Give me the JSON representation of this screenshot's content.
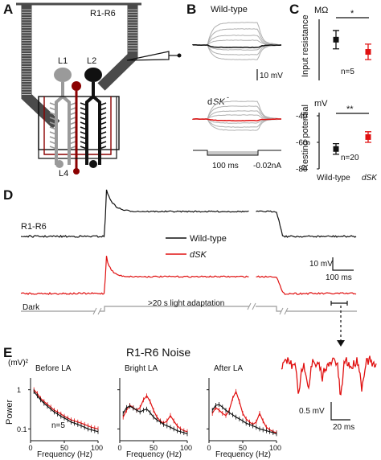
{
  "panel_labels": {
    "a": "A",
    "b": "B",
    "c": "C",
    "d": "D",
    "e": "E"
  },
  "panel_a": {
    "photoreceptor_group": "R1-R6",
    "cell_l1": "L1",
    "cell_l2": "L2",
    "cell_l4": "L4"
  },
  "panel_b": {
    "wild_type": "Wild-type",
    "mutant_prefix": "d",
    "mutant_gene": "SK",
    "mutant_superscript": "-",
    "voltage_scale": "10 mV",
    "time_scale": "100 ms",
    "current": "-0.02nA"
  },
  "panel_c": {
    "colors": {
      "wild_type": "#111111",
      "mutant": "#e01010"
    },
    "top": {
      "unit": "MΩ",
      "ylabel": "Input resistance",
      "n_label": "n=5",
      "significance": "*"
    },
    "bottom": {
      "unit": "mV",
      "ylabel": "Resting potential",
      "ticks": [
        "-40",
        "-60",
        "-80"
      ],
      "n_label": "n=20",
      "significance": "**"
    },
    "xlabel_wt": "Wild-type",
    "xlabel_mut": "dSK"
  },
  "panel_d": {
    "trace_label": "R1-R6",
    "legend_wt": "Wild-type",
    "legend_mut": "dSK",
    "voltage_scale": "10 mV",
    "time_scale": "100 ms",
    "dark_label": "Dark",
    "adaptation_label": ">20 s light adaptation",
    "inset_voltage_scale": "0.5 mV",
    "inset_time_scale": "20 ms"
  },
  "panel_e": {
    "title": "R1-R6 Noise",
    "unit_label": "(mV)²",
    "ylabel": "Power",
    "xlabel": "Frequency (Hz)",
    "n_label": "n=5",
    "ytick_labels": [
      "1",
      "0.1"
    ],
    "xtick_labels": [
      "0",
      "50",
      "100"
    ],
    "subpanels": [
      {
        "title": "Before LA"
      },
      {
        "title": "Bright LA"
      },
      {
        "title": "After LA"
      }
    ]
  },
  "chart_data": [
    {
      "type": "scatter",
      "title": "",
      "ylabel": "Input resistance (MΩ)",
      "categories": [
        "Wild-type",
        "dSK"
      ],
      "series": [
        {
          "name": "Wild-type",
          "values": [
            200
          ],
          "error": [
            45
          ]
        },
        {
          "name": "dSK",
          "values": [
            140
          ],
          "error": [
            38
          ]
        }
      ],
      "annotations": [
        "n=5",
        "*"
      ]
    },
    {
      "type": "scatter",
      "title": "",
      "ylabel": "Resting potential (mV)",
      "ylim": [
        -80,
        -40
      ],
      "categories": [
        "Wild-type",
        "dSK"
      ],
      "series": [
        {
          "name": "Wild-type",
          "values": [
            -65
          ],
          "error": [
            4
          ]
        },
        {
          "name": "dSK",
          "values": [
            -56
          ],
          "error": [
            4
          ]
        }
      ],
      "annotations": [
        "n=20",
        "**"
      ]
    },
    {
      "type": "line",
      "title": "Before LA",
      "xlabel": "Frequency (Hz)",
      "ylabel": "Power (mV)²",
      "xlim": [
        0,
        100
      ],
      "yscale": "log",
      "x": [
        5,
        10,
        15,
        20,
        25,
        30,
        35,
        40,
        45,
        50,
        55,
        60,
        65,
        70,
        75,
        80,
        85,
        90,
        95,
        100
      ],
      "series": [
        {
          "name": "Wild-type",
          "values": [
            0.9,
            0.7,
            0.55,
            0.45,
            0.38,
            0.32,
            0.27,
            0.24,
            0.21,
            0.19,
            0.17,
            0.15,
            0.14,
            0.13,
            0.12,
            0.11,
            0.1,
            0.095,
            0.09,
            0.085
          ]
        },
        {
          "name": "dSK",
          "values": [
            1.0,
            0.8,
            0.6,
            0.5,
            0.42,
            0.36,
            0.3,
            0.27,
            0.24,
            0.21,
            0.19,
            0.17,
            0.16,
            0.15,
            0.14,
            0.13,
            0.12,
            0.11,
            0.105,
            0.1
          ]
        }
      ]
    },
    {
      "type": "line",
      "title": "Bright LA",
      "xlabel": "Frequency (Hz)",
      "ylabel": "Power (mV)²",
      "xlim": [
        0,
        100
      ],
      "yscale": "log",
      "x": [
        5,
        10,
        15,
        20,
        25,
        30,
        35,
        40,
        45,
        50,
        55,
        60,
        65,
        70,
        75,
        80,
        85,
        90,
        95,
        100
      ],
      "series": [
        {
          "name": "Wild-type",
          "values": [
            0.25,
            0.35,
            0.38,
            0.34,
            0.3,
            0.27,
            0.3,
            0.32,
            0.26,
            0.2,
            0.17,
            0.15,
            0.13,
            0.12,
            0.11,
            0.1,
            0.09,
            0.085,
            0.08,
            0.075
          ]
        },
        {
          "name": "dSK",
          "values": [
            0.2,
            0.3,
            0.4,
            0.35,
            0.3,
            0.35,
            0.55,
            0.7,
            0.5,
            0.3,
            0.2,
            0.16,
            0.14,
            0.16,
            0.22,
            0.16,
            0.12,
            0.1,
            0.09,
            0.085
          ]
        }
      ]
    },
    {
      "type": "line",
      "title": "After LA",
      "xlabel": "Frequency (Hz)",
      "ylabel": "Power (mV)²",
      "xlim": [
        0,
        100
      ],
      "yscale": "log",
      "x": [
        5,
        10,
        15,
        20,
        25,
        30,
        35,
        40,
        45,
        50,
        55,
        60,
        65,
        70,
        75,
        80,
        85,
        90,
        95,
        100
      ],
      "series": [
        {
          "name": "Wild-type",
          "values": [
            0.3,
            0.4,
            0.42,
            0.36,
            0.3,
            0.26,
            0.23,
            0.2,
            0.18,
            0.16,
            0.14,
            0.13,
            0.12,
            0.11,
            0.1,
            0.095,
            0.09,
            0.085,
            0.08,
            0.075
          ]
        },
        {
          "name": "dSK",
          "values": [
            0.25,
            0.35,
            0.3,
            0.25,
            0.22,
            0.3,
            0.6,
            0.9,
            0.5,
            0.25,
            0.18,
            0.15,
            0.13,
            0.15,
            0.25,
            0.16,
            0.11,
            0.095,
            0.085,
            0.08
          ]
        }
      ]
    }
  ]
}
